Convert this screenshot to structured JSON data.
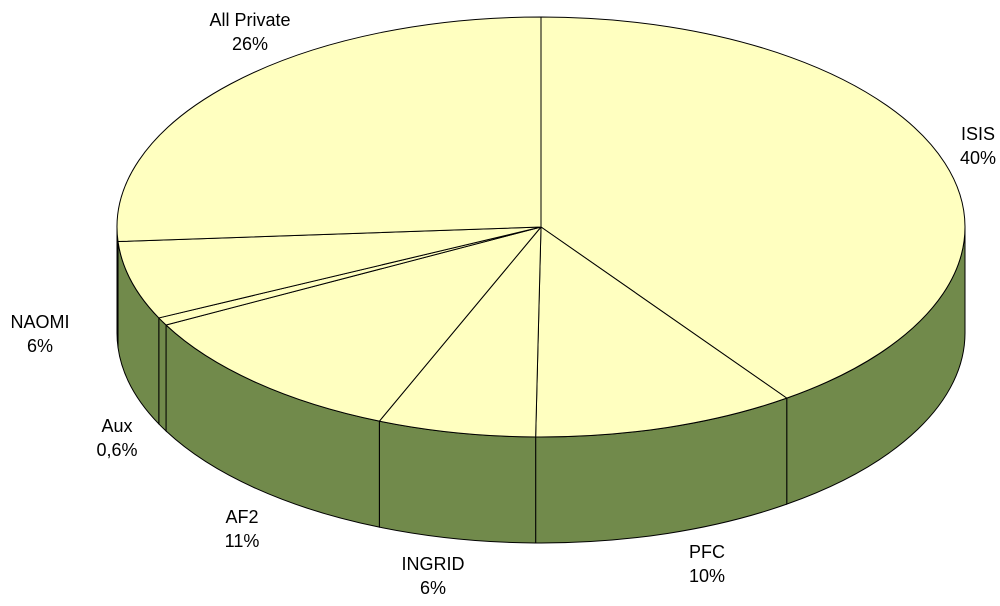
{
  "chart_data": {
    "type": "pie",
    "style": "3d",
    "title": "",
    "categories": [
      "ISIS",
      "PFC",
      "INGRID",
      "AF2",
      "Aux",
      "NAOMI",
      "All Private"
    ],
    "values": [
      40,
      10,
      6,
      11,
      0.6,
      6,
      26
    ],
    "value_labels": [
      "40%",
      "10%",
      "6%",
      "11%",
      "0,6%",
      "6%",
      "26%"
    ],
    "legend": "none",
    "colors": {
      "top_face": "#ffffc0",
      "side_face": "#718a4b",
      "outline": "#000000"
    }
  }
}
